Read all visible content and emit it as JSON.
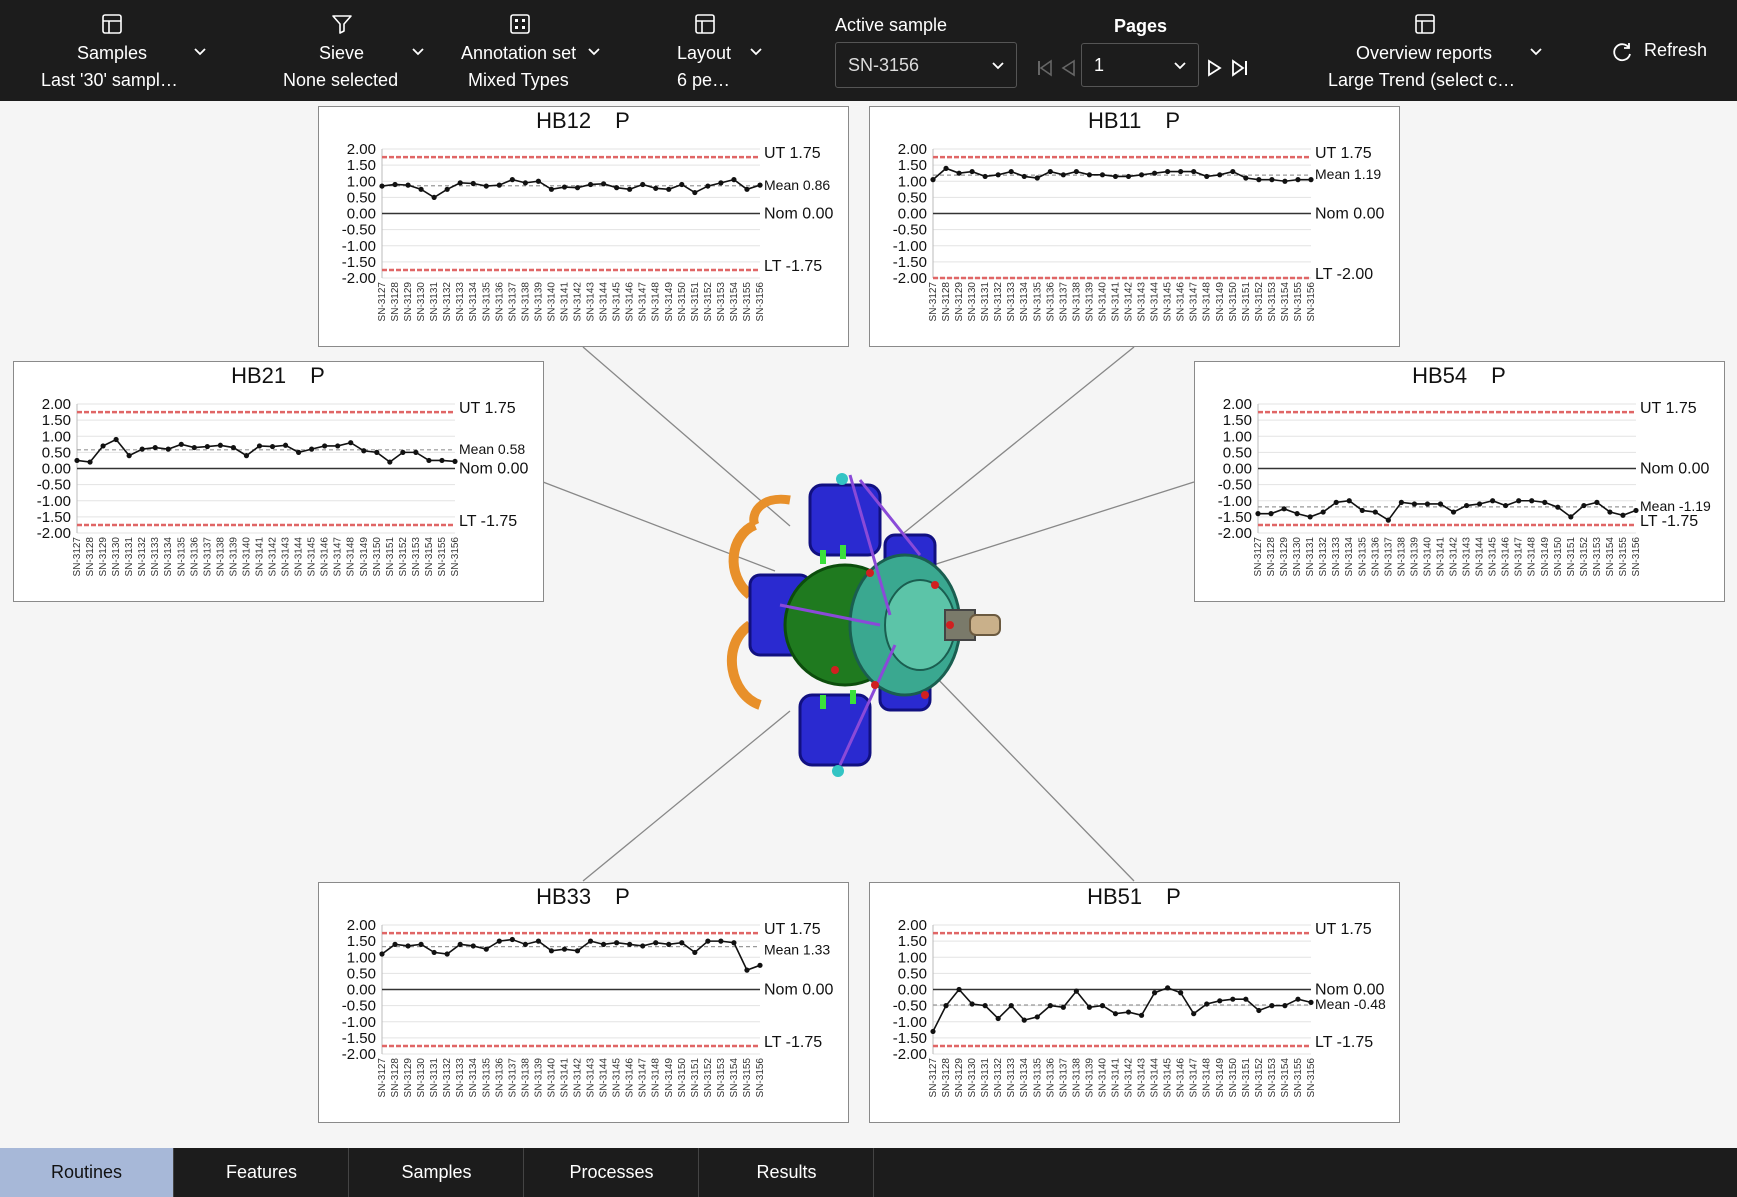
{
  "toolbar": {
    "samples": {
      "label": "Samples",
      "value": "Last '30' sampl…"
    },
    "sieve": {
      "label": "Sieve",
      "value": "None selected"
    },
    "annotation": {
      "label": "Annotation set",
      "value": "Mixed Types"
    },
    "layout": {
      "label": "Layout",
      "value": "6 pe…"
    },
    "active_sample": {
      "label": "Active sample",
      "value": "SN-3156"
    },
    "pages": {
      "label": "Pages",
      "value": "1"
    },
    "overview": {
      "label": "Overview reports",
      "value": "Large Trend (select c…"
    },
    "refresh_label": "Refresh"
  },
  "tabs": [
    "Routines",
    "Features",
    "Samples",
    "Processes",
    "Results"
  ],
  "active_tab": "Routines",
  "colors": {
    "toolbar": "#1c1c1c",
    "tolerance": "#e06666",
    "active_tab": "#a7b8d8"
  },
  "chart_data": [
    {
      "type": "line",
      "feature": "HB12",
      "tag": "P",
      "ut_label": "UT 1.75",
      "lt_label": "LT -1.75",
      "mean_label": "Mean 0.86",
      "nom_label": "Nom 0.00",
      "ut": 1.75,
      "lt": -1.75,
      "mean": 0.86,
      "nom": 0.0,
      "ylim": [
        -2,
        2
      ],
      "yticks": [
        "2.00",
        "1.50",
        "1.00",
        "0.50",
        "0.00",
        "-0.50",
        "-1.00",
        "-1.50",
        "-2.00"
      ],
      "x": [
        "SN-3127",
        "SN-3128",
        "SN-3129",
        "SN-3130",
        "SN-3131",
        "SN-3132",
        "SN-3133",
        "SN-3134",
        "SN-3135",
        "SN-3136",
        "SN-3137",
        "SN-3138",
        "SN-3139",
        "SN-3140",
        "SN-3141",
        "SN-3142",
        "SN-3143",
        "SN-3144",
        "SN-3145",
        "SN-3146",
        "SN-3147",
        "SN-3148",
        "SN-3149",
        "SN-3150",
        "SN-3151",
        "SN-3152",
        "SN-3153",
        "SN-3154",
        "SN-3155",
        "SN-3156"
      ],
      "values": [
        0.85,
        0.9,
        0.88,
        0.75,
        0.5,
        0.75,
        0.95,
        0.93,
        0.85,
        0.88,
        1.05,
        0.95,
        1.0,
        0.75,
        0.82,
        0.8,
        0.9,
        0.92,
        0.8,
        0.75,
        0.9,
        0.78,
        0.75,
        0.9,
        0.65,
        0.85,
        0.95,
        1.05,
        0.75,
        0.88
      ]
    },
    {
      "type": "line",
      "feature": "HB11",
      "tag": "P",
      "ut_label": "UT 1.75",
      "lt_label": "LT -2.00",
      "mean_label": "Mean 1.19",
      "nom_label": "Nom 0.00",
      "ut": 1.75,
      "lt": -2.0,
      "mean": 1.19,
      "nom": 0.0,
      "ylim": [
        -2,
        2
      ],
      "yticks": [
        "2.00",
        "1.50",
        "1.00",
        "0.50",
        "0.00",
        "-0.50",
        "-1.00",
        "-1.50",
        "-2.00"
      ],
      "x": [
        "SN-3127",
        "SN-3128",
        "SN-3129",
        "SN-3130",
        "SN-3131",
        "SN-3132",
        "SN-3133",
        "SN-3134",
        "SN-3135",
        "SN-3136",
        "SN-3137",
        "SN-3138",
        "SN-3139",
        "SN-3140",
        "SN-3141",
        "SN-3142",
        "SN-3143",
        "SN-3144",
        "SN-3145",
        "SN-3146",
        "SN-3147",
        "SN-3148",
        "SN-3149",
        "SN-3150",
        "SN-3151",
        "SN-3152",
        "SN-3153",
        "SN-3154",
        "SN-3155",
        "SN-3156"
      ],
      "values": [
        1.05,
        1.4,
        1.25,
        1.3,
        1.15,
        1.2,
        1.3,
        1.15,
        1.1,
        1.3,
        1.2,
        1.3,
        1.2,
        1.2,
        1.15,
        1.15,
        1.2,
        1.25,
        1.3,
        1.3,
        1.3,
        1.15,
        1.2,
        1.3,
        1.1,
        1.05,
        1.05,
        1.0,
        1.05,
        1.05
      ]
    },
    {
      "type": "line",
      "feature": "HB21",
      "tag": "P",
      "ut_label": "UT 1.75",
      "lt_label": "LT -1.75",
      "mean_label": "Mean 0.58",
      "nom_label": "Nom 0.00",
      "ut": 1.75,
      "lt": -1.75,
      "mean": 0.58,
      "nom": 0.0,
      "ylim": [
        -2,
        2
      ],
      "yticks": [
        "2.00",
        "1.50",
        "1.00",
        "0.50",
        "0.00",
        "-0.50",
        "-1.00",
        "-1.50",
        "-2.00"
      ],
      "x": [
        "SN-3127",
        "SN-3128",
        "SN-3129",
        "SN-3130",
        "SN-3131",
        "SN-3132",
        "SN-3133",
        "SN-3134",
        "SN-3135",
        "SN-3136",
        "SN-3137",
        "SN-3138",
        "SN-3139",
        "SN-3140",
        "SN-3141",
        "SN-3142",
        "SN-3143",
        "SN-3144",
        "SN-3145",
        "SN-3146",
        "SN-3147",
        "SN-3148",
        "SN-3149",
        "SN-3150",
        "SN-3151",
        "SN-3152",
        "SN-3153",
        "SN-3154",
        "SN-3155",
        "SN-3156"
      ],
      "values": [
        0.25,
        0.2,
        0.7,
        0.9,
        0.4,
        0.6,
        0.65,
        0.6,
        0.75,
        0.65,
        0.68,
        0.72,
        0.65,
        0.4,
        0.7,
        0.68,
        0.72,
        0.5,
        0.6,
        0.7,
        0.7,
        0.8,
        0.55,
        0.5,
        0.2,
        0.5,
        0.5,
        0.25,
        0.25,
        0.22
      ]
    },
    {
      "type": "line",
      "feature": "HB54",
      "tag": "P",
      "ut_label": "UT 1.75",
      "lt_label": "LT -1.75",
      "mean_label": "Mean -1.19",
      "nom_label": "Nom 0.00",
      "ut": 1.75,
      "lt": -1.75,
      "mean": -1.19,
      "nom": 0.0,
      "ylim": [
        -2,
        2
      ],
      "yticks": [
        "2.00",
        "1.50",
        "1.00",
        "0.50",
        "0.00",
        "-0.50",
        "-1.00",
        "-1.50",
        "-2.00"
      ],
      "x": [
        "SN-3127",
        "SN-3128",
        "SN-3129",
        "SN-3130",
        "SN-3131",
        "SN-3132",
        "SN-3133",
        "SN-3134",
        "SN-3135",
        "SN-3136",
        "SN-3137",
        "SN-3138",
        "SN-3139",
        "SN-3140",
        "SN-3141",
        "SN-3142",
        "SN-3143",
        "SN-3144",
        "SN-3145",
        "SN-3146",
        "SN-3147",
        "SN-3148",
        "SN-3149",
        "SN-3150",
        "SN-3151",
        "SN-3152",
        "SN-3153",
        "SN-3154",
        "SN-3155",
        "SN-3156"
      ],
      "values": [
        -1.4,
        -1.4,
        -1.25,
        -1.4,
        -1.5,
        -1.35,
        -1.05,
        -1.0,
        -1.3,
        -1.35,
        -1.6,
        -1.05,
        -1.1,
        -1.1,
        -1.1,
        -1.35,
        -1.15,
        -1.1,
        -1.0,
        -1.15,
        -1.0,
        -1.0,
        -1.05,
        -1.2,
        -1.5,
        -1.15,
        -1.05,
        -1.35,
        -1.45,
        -1.3
      ]
    },
    {
      "type": "line",
      "feature": "HB33",
      "tag": "P",
      "ut_label": "UT 1.75",
      "lt_label": "LT -1.75",
      "mean_label": "Mean 1.33",
      "nom_label": "Nom 0.00",
      "ut": 1.75,
      "lt": -1.75,
      "mean": 1.33,
      "nom": 0.0,
      "ylim": [
        -2,
        2
      ],
      "yticks": [
        "2.00",
        "1.50",
        "1.00",
        "0.50",
        "0.00",
        "-0.50",
        "-1.00",
        "-1.50",
        "-2.00"
      ],
      "x": [
        "SN-3127",
        "SN-3128",
        "SN-3129",
        "SN-3130",
        "SN-3131",
        "SN-3132",
        "SN-3133",
        "SN-3134",
        "SN-3135",
        "SN-3136",
        "SN-3137",
        "SN-3138",
        "SN-3139",
        "SN-3140",
        "SN-3141",
        "SN-3142",
        "SN-3143",
        "SN-3144",
        "SN-3145",
        "SN-3146",
        "SN-3147",
        "SN-3148",
        "SN-3149",
        "SN-3150",
        "SN-3151",
        "SN-3152",
        "SN-3153",
        "SN-3154",
        "SN-3155",
        "SN-3156"
      ],
      "values": [
        1.1,
        1.4,
        1.35,
        1.4,
        1.15,
        1.1,
        1.4,
        1.35,
        1.25,
        1.5,
        1.55,
        1.4,
        1.5,
        1.2,
        1.25,
        1.2,
        1.5,
        1.4,
        1.45,
        1.4,
        1.35,
        1.45,
        1.4,
        1.45,
        1.15,
        1.5,
        1.5,
        1.45,
        0.6,
        0.75
      ]
    },
    {
      "type": "line",
      "feature": "HB51",
      "tag": "P",
      "ut_label": "UT 1.75",
      "lt_label": "LT -1.75",
      "mean_label": "Mean -0.48",
      "nom_label": "Nom 0.00",
      "ut": 1.75,
      "lt": -1.75,
      "mean": -0.48,
      "nom": 0.0,
      "ylim": [
        -2,
        2
      ],
      "yticks": [
        "2.00",
        "1.50",
        "1.00",
        "0.50",
        "0.00",
        "-0.50",
        "-1.00",
        "-1.50",
        "-2.00"
      ],
      "x": [
        "SN-3127",
        "SN-3128",
        "SN-3129",
        "SN-3130",
        "SN-3131",
        "SN-3132",
        "SN-3133",
        "SN-3134",
        "SN-3135",
        "SN-3136",
        "SN-3137",
        "SN-3138",
        "SN-3139",
        "SN-3140",
        "SN-3141",
        "SN-3142",
        "SN-3143",
        "SN-3144",
        "SN-3145",
        "SN-3146",
        "SN-3147",
        "SN-3148",
        "SN-3149",
        "SN-3150",
        "SN-3151",
        "SN-3152",
        "SN-3153",
        "SN-3154",
        "SN-3155",
        "SN-3156"
      ],
      "values": [
        -1.3,
        -0.5,
        0.0,
        -0.45,
        -0.5,
        -0.9,
        -0.5,
        -0.95,
        -0.85,
        -0.5,
        -0.55,
        -0.05,
        -0.55,
        -0.5,
        -0.75,
        -0.7,
        -0.8,
        -0.1,
        0.05,
        -0.1,
        -0.75,
        -0.45,
        -0.35,
        -0.3,
        -0.3,
        -0.65,
        -0.5,
        -0.5,
        -0.3,
        -0.4
      ]
    }
  ]
}
